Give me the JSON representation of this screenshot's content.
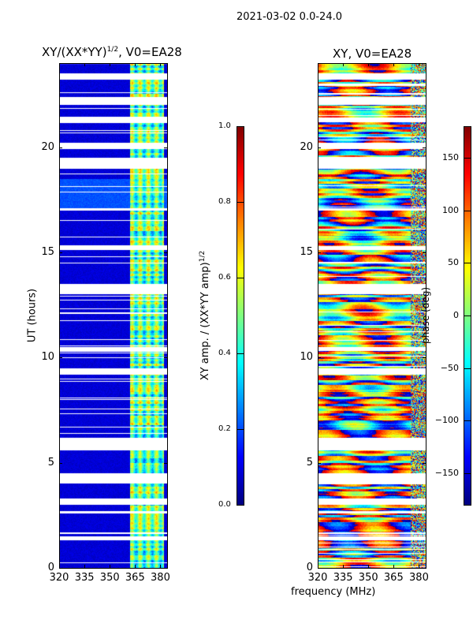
{
  "suptitle": "2021-03-02 0.0-24.0",
  "chart_data": [
    {
      "type": "heatmap",
      "title": "XY/(XX*YY)",
      "title_sup": "1/2",
      "title_suffix": ", V0=EA28",
      "xlabel": "",
      "ylabel": "UT (hours)",
      "xlim": [
        320,
        384
      ],
      "ylim": [
        0,
        24
      ],
      "xticks": [
        320,
        335,
        350,
        365,
        380
      ],
      "yticks": [
        0,
        5,
        10,
        15,
        20
      ],
      "colorbar": {
        "label": "XY amp. / (XX*YY amp)",
        "label_sup": "1/2",
        "range": [
          0,
          1
        ],
        "ticks": [
          "0.0",
          "0.2",
          "0.4",
          "0.6",
          "0.8",
          "1.0"
        ],
        "colormap": "jet"
      },
      "description_values": {
        "background_amp": 0.05,
        "bright_band_mhz": [
          362,
          382
        ],
        "band_amp": 0.45
      },
      "flagged_hours": [
        [
          1.3,
          1.5
        ],
        [
          1.6,
          1.7
        ],
        [
          2.6,
          2.7
        ],
        [
          3.0,
          3.3
        ],
        [
          4.0,
          4.5
        ],
        [
          5.6,
          6.2
        ],
        [
          9.2,
          9.5
        ],
        [
          10.3,
          10.5
        ],
        [
          13.0,
          13.5
        ],
        [
          15.1,
          15.3
        ],
        [
          17.0,
          17.1
        ],
        [
          19.0,
          19.5
        ],
        [
          19.9,
          20.2
        ],
        [
          21.2,
          21.4
        ],
        [
          22.0,
          22.4
        ],
        [
          23.2,
          23.5
        ]
      ]
    },
    {
      "type": "heatmap",
      "title": "XY, V0=EA28",
      "xlabel": "frequency (MHz)",
      "ylabel": "",
      "xlim": [
        320,
        384
      ],
      "ylim": [
        0,
        24
      ],
      "xticks": [
        320,
        335,
        350,
        365,
        380
      ],
      "yticks": [
        0,
        5,
        10,
        15,
        20
      ],
      "colorbar": {
        "label": "phase (deg)",
        "range": [
          -180,
          180
        ],
        "ticks": [
          "−150",
          "−100",
          "−50",
          "0",
          "50",
          "100",
          "150"
        ],
        "tick_values": [
          -150,
          -100,
          -50,
          0,
          50,
          100,
          150
        ],
        "colormap": "jet"
      }
    }
  ]
}
